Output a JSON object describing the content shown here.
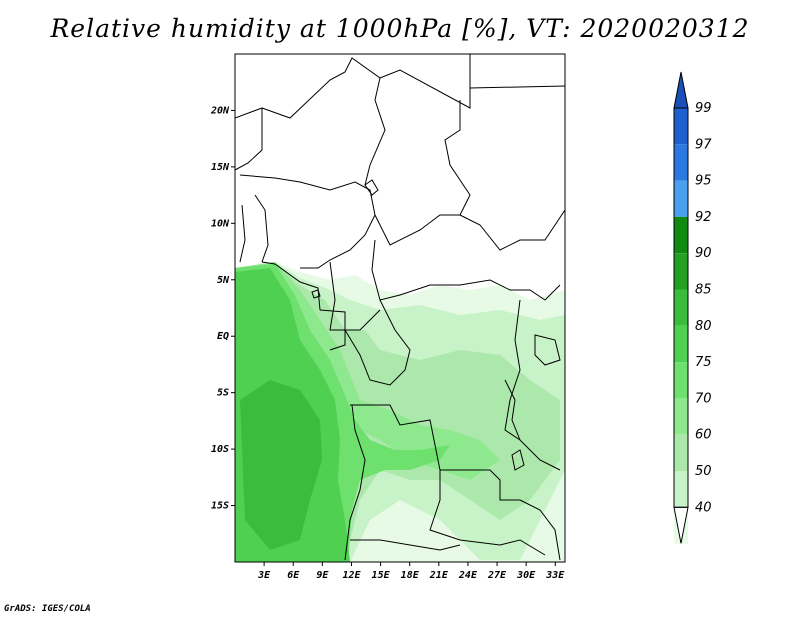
{
  "title": "Relative humidity at 1000hPa [%], VT: 2020020312",
  "credit": "GrADS: IGES/COLA",
  "map": {
    "lon_range": [
      0,
      34
    ],
    "lat_range": [
      -20,
      25
    ],
    "lat_ticks": [
      {
        "value": 20,
        "label": "20N"
      },
      {
        "value": 15,
        "label": "15N"
      },
      {
        "value": 10,
        "label": "10N"
      },
      {
        "value": 5,
        "label": "5N"
      },
      {
        "value": 0,
        "label": "EQ"
      },
      {
        "value": -5,
        "label": "5S"
      },
      {
        "value": -10,
        "label": "10S"
      },
      {
        "value": -15,
        "label": "15S"
      }
    ],
    "lon_ticks": [
      {
        "value": 3,
        "label": "3E"
      },
      {
        "value": 6,
        "label": "6E"
      },
      {
        "value": 9,
        "label": "9E"
      },
      {
        "value": 12,
        "label": "12E"
      },
      {
        "value": 15,
        "label": "15E"
      },
      {
        "value": 18,
        "label": "18E"
      },
      {
        "value": 21,
        "label": "21E"
      },
      {
        "value": 24,
        "label": "24E"
      },
      {
        "value": 27,
        "label": "27E"
      },
      {
        "value": 30,
        "label": "30E"
      },
      {
        "value": 33,
        "label": "33E"
      }
    ]
  },
  "colorbar": {
    "levels": [
      {
        "label": "99",
        "color": "#1f5fd0"
      },
      {
        "label": "97",
        "color": "#2a78e0"
      },
      {
        "label": "95",
        "color": "#4aa0ee"
      },
      {
        "label": "92",
        "color": "#108a10"
      },
      {
        "label": "90",
        "color": "#24a024"
      },
      {
        "label": "85",
        "color": "#3cbc3c"
      },
      {
        "label": "80",
        "color": "#50d050"
      },
      {
        "label": "75",
        "color": "#6ee06e"
      },
      {
        "label": "70",
        "color": "#8ee88e"
      },
      {
        "label": "60",
        "color": "#ace8ac"
      },
      {
        "label": "50",
        "color": "#c8f2c8"
      },
      {
        "label": "40",
        "color": "#e6fae6"
      }
    ],
    "top_arrow_color": "#1a4fb8",
    "bottom_arrow_color": "#ffffff"
  },
  "colors": {
    "land_white": "#ffffff",
    "border_line": "#000000"
  }
}
